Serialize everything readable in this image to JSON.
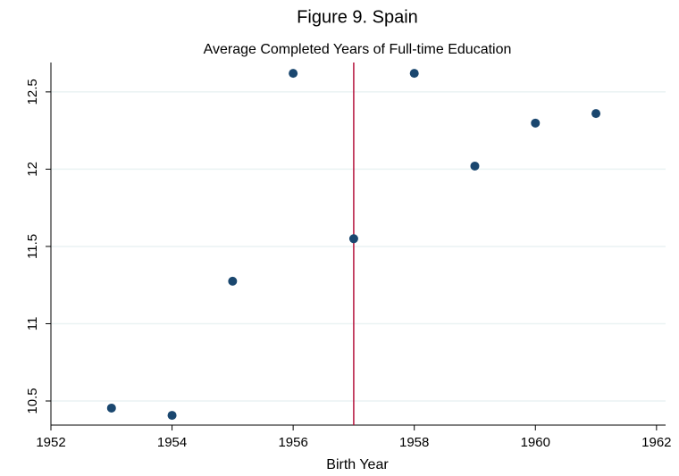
{
  "chart_data": {
    "type": "scatter",
    "title": "Figure 9. Spain",
    "subtitle": "Average Completed Years of Full-time Education",
    "xlabel": "Birth Year",
    "x": [
      1953,
      1954,
      1955,
      1956,
      1957,
      1958,
      1959,
      1960,
      1961
    ],
    "values": [
      10.454,
      10.407,
      11.275,
      12.62,
      11.55,
      12.62,
      12.02,
      12.298,
      12.36
    ],
    "color": "#1a476f",
    "xlim": [
      1952,
      1962.15
    ],
    "xticks": [
      1952,
      1954,
      1956,
      1958,
      1960,
      1962
    ],
    "ylim": [
      10.344,
      12.69
    ],
    "yticks": [
      10.5,
      11,
      11.5,
      12,
      12.5
    ],
    "grid": true,
    "vline": 1957,
    "vline_color": "#b5123c"
  }
}
